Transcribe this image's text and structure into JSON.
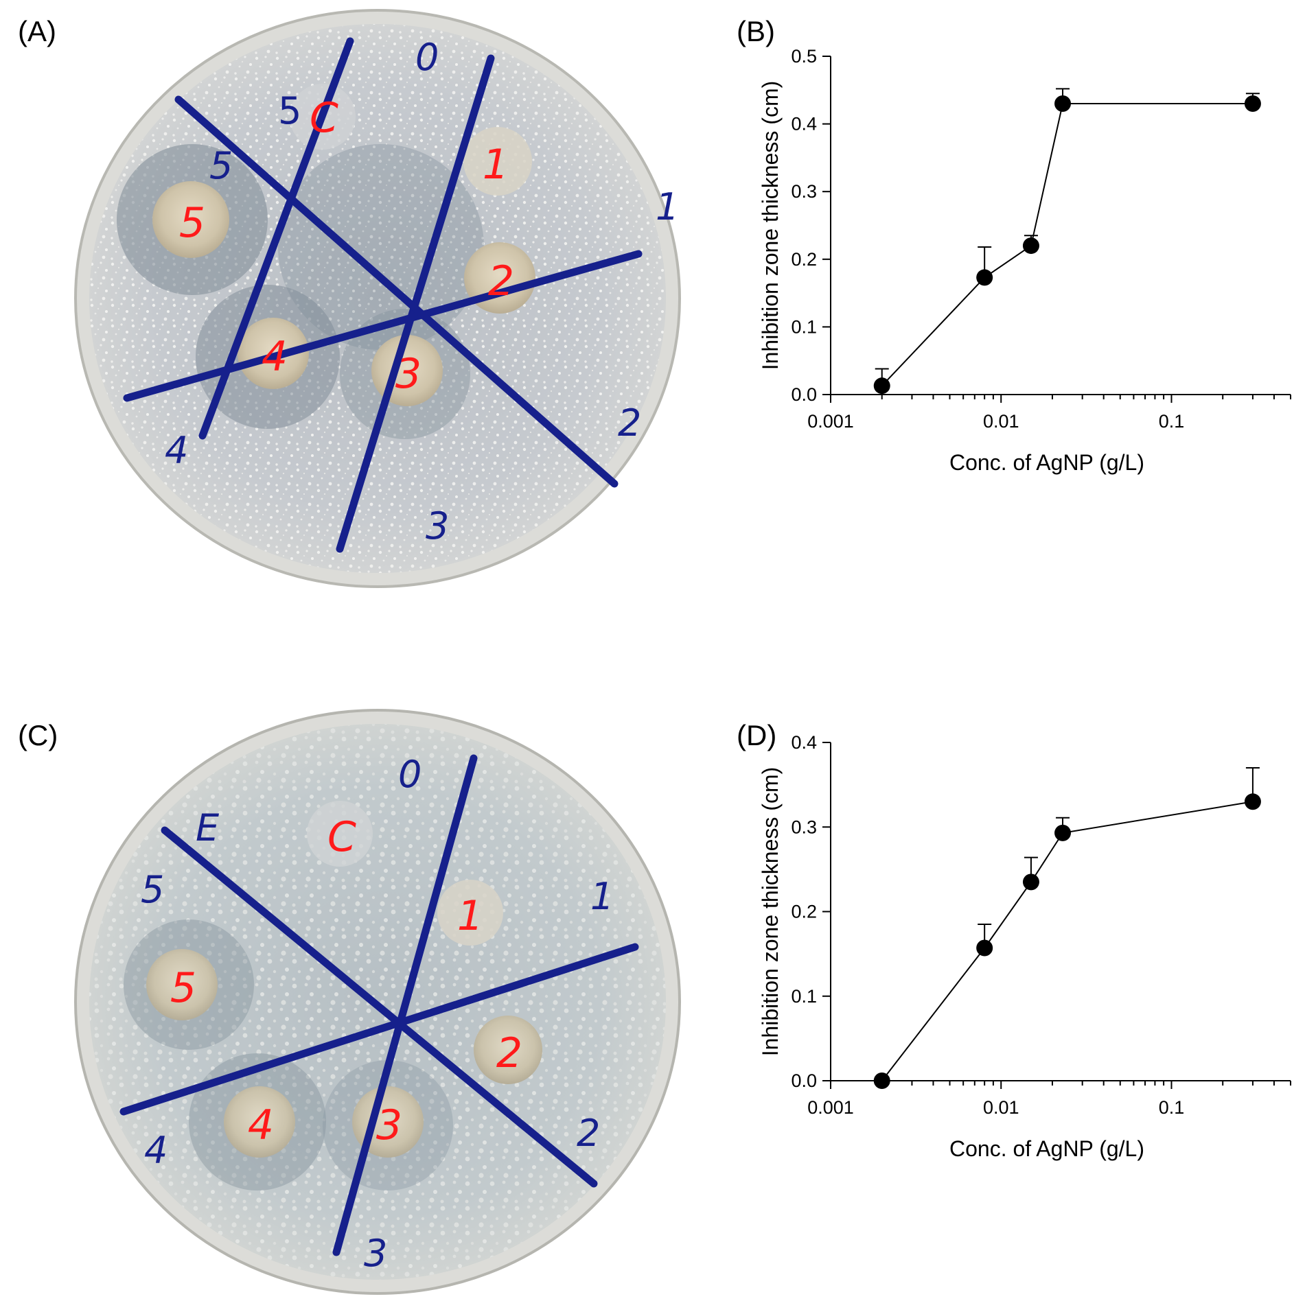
{
  "panels": {
    "a": "(A)",
    "b": "(B)",
    "c": "(C)",
    "d": "(D)"
  },
  "plates": [
    {
      "id": "A",
      "sector_marks": [
        "0",
        "1",
        "2",
        "3",
        "4",
        "5"
      ],
      "spot_labels": [
        "C",
        "1",
        "2",
        "3",
        "4",
        "5"
      ]
    },
    {
      "id": "C",
      "sector_marks": [
        "0",
        "1",
        "2",
        "3",
        "4",
        "5",
        "E"
      ],
      "spot_labels": [
        "C",
        "1",
        "2",
        "3",
        "4",
        "5"
      ]
    }
  ],
  "colors": {
    "marker": "#16208c",
    "spot_label": "#ff1a1a",
    "agar_a": "#c9cdd2",
    "agar_c": "#c3c9cd",
    "chart_line": "#000000"
  },
  "chart_data": [
    {
      "type": "line",
      "panel": "B",
      "xscale": "log",
      "xlabel": "Conc. of AgNP (g/L)",
      "ylabel": "Inhibition zone thickness (cm)",
      "xlim": [
        0.001,
        0.5
      ],
      "ylim": [
        0,
        0.5
      ],
      "xticks": [
        0.001,
        0.01,
        0.1
      ],
      "xtick_labels": [
        "0.001",
        "0.01",
        "0.1"
      ],
      "yticks": [
        0,
        0.1,
        0.2,
        0.3,
        0.4,
        0.5
      ],
      "ytick_labels": [
        "0.0",
        "0.1",
        "0.2",
        "0.3",
        "0.4",
        "0.5"
      ],
      "x": [
        0.002,
        0.008,
        0.015,
        0.023,
        0.3
      ],
      "y": [
        0.013,
        0.173,
        0.22,
        0.43,
        0.43
      ],
      "err_plus": [
        0.025,
        0.045,
        0.015,
        0.022,
        0.015
      ]
    },
    {
      "type": "line",
      "panel": "D",
      "xscale": "log",
      "xlabel": "Conc. of AgNP (g/L)",
      "ylabel": "Inhibition zone thickness (cm)",
      "xlim": [
        0.001,
        0.5
      ],
      "ylim": [
        0,
        0.4
      ],
      "xticks": [
        0.001,
        0.01,
        0.1
      ],
      "xtick_labels": [
        "0.001",
        "0.01",
        "0.1"
      ],
      "yticks": [
        0,
        0.1,
        0.2,
        0.3,
        0.4
      ],
      "ytick_labels": [
        "0.0",
        "0.1",
        "0.2",
        "0.3",
        "0.4"
      ],
      "x": [
        0.002,
        0.008,
        0.015,
        0.023,
        0.3
      ],
      "y": [
        0.0,
        0.157,
        0.235,
        0.293,
        0.33
      ],
      "err_plus": [
        0.0,
        0.028,
        0.029,
        0.018,
        0.04
      ]
    }
  ]
}
